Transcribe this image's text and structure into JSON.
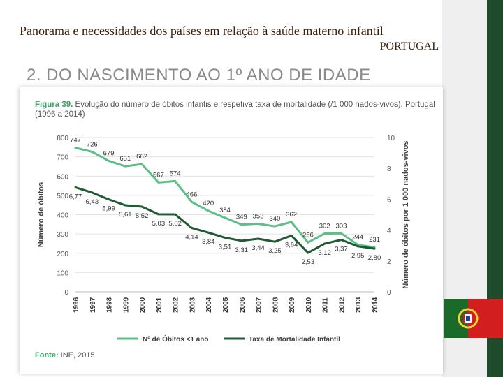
{
  "slide": {
    "title": "Panorama e necessidades dos países em relação à saúde materno infantil",
    "country": "PORTUGAL",
    "section_title": "2. DO NASCIMENTO AO 1º ANO DE IDADE"
  },
  "colors": {
    "accent_green": "#3aa36a",
    "series_light": "#5bbf87",
    "series_dark": "#1f5a33",
    "band_green": "#1e4b2b"
  },
  "figure": {
    "label": "Figura 39.",
    "caption": "Evolução do número de óbitos infantis e respetiva taxa de mortalidade (/1 000 nados-vivos), Portugal (1996 a 2014)",
    "source_label": "Fonte:",
    "source": "INE, 2015"
  },
  "chart_data": {
    "type": "line",
    "categories": [
      "1996",
      "1997",
      "1998",
      "1999",
      "2000",
      "2001",
      "2002",
      "2003",
      "2004",
      "2005",
      "2006",
      "2007",
      "2008",
      "2009",
      "2010",
      "2011",
      "2012",
      "2013",
      "2014"
    ],
    "series": [
      {
        "name": "Nº de Óbitos <1 ano",
        "axis": "left",
        "values": [
          747,
          726,
          679,
          651,
          662,
          567,
          574,
          466,
          420,
          384,
          349,
          353,
          340,
          362,
          256,
          302,
          303,
          244,
          231
        ],
        "labels": [
          "747",
          "726",
          "679",
          "651",
          "662",
          "567",
          "574",
          "466",
          "420",
          "384",
          "349",
          "353",
          "340",
          "362",
          "256",
          "302",
          "303",
          "244",
          "231"
        ]
      },
      {
        "name": "Taxa de Mortalidade Infantil",
        "axis": "right",
        "values": [
          6.77,
          6.43,
          5.99,
          5.61,
          5.52,
          5.03,
          5.02,
          4.14,
          3.84,
          3.51,
          3.31,
          3.44,
          3.25,
          3.64,
          2.53,
          3.12,
          3.37,
          2.95,
          2.8
        ],
        "labels": [
          "6,77",
          "6,43",
          "5,99",
          "5,61",
          "5,52",
          "5,03",
          "5,02",
          "4,14",
          "3,84",
          "3,51",
          "3,31",
          "3,44",
          "3,25",
          "3,64",
          "2,53",
          "3,12",
          "3,37",
          "2,95",
          "2,80"
        ]
      }
    ],
    "y_left": {
      "label": "Número de óbitos",
      "ylim": [
        0,
        800
      ],
      "ticks": [
        "0",
        "100",
        "200",
        "300",
        "400",
        "500",
        "600",
        "700",
        "800"
      ]
    },
    "y_right": {
      "label": "Número de óbitos por 1 000 nados-vivos",
      "ylim": [
        0,
        10
      ],
      "ticks": [
        "0",
        "2",
        "4",
        "6",
        "8",
        "10"
      ]
    },
    "legend": [
      "Nº de Óbitos <1 ano",
      "Taxa de Mortalidade Infantil"
    ]
  }
}
